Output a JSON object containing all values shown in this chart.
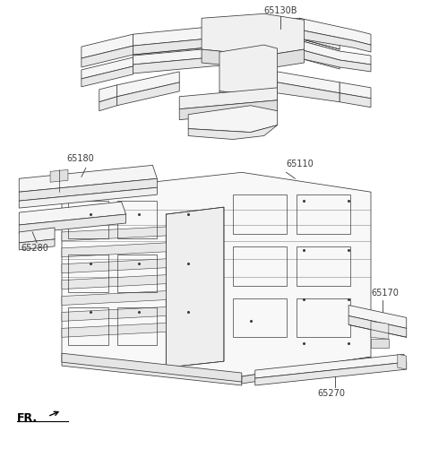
{
  "bg_color": "#ffffff",
  "line_color": "#3a3a3a",
  "text_color": "#3a3a3a",
  "lw": 0.55,
  "fontsize": 7.0
}
